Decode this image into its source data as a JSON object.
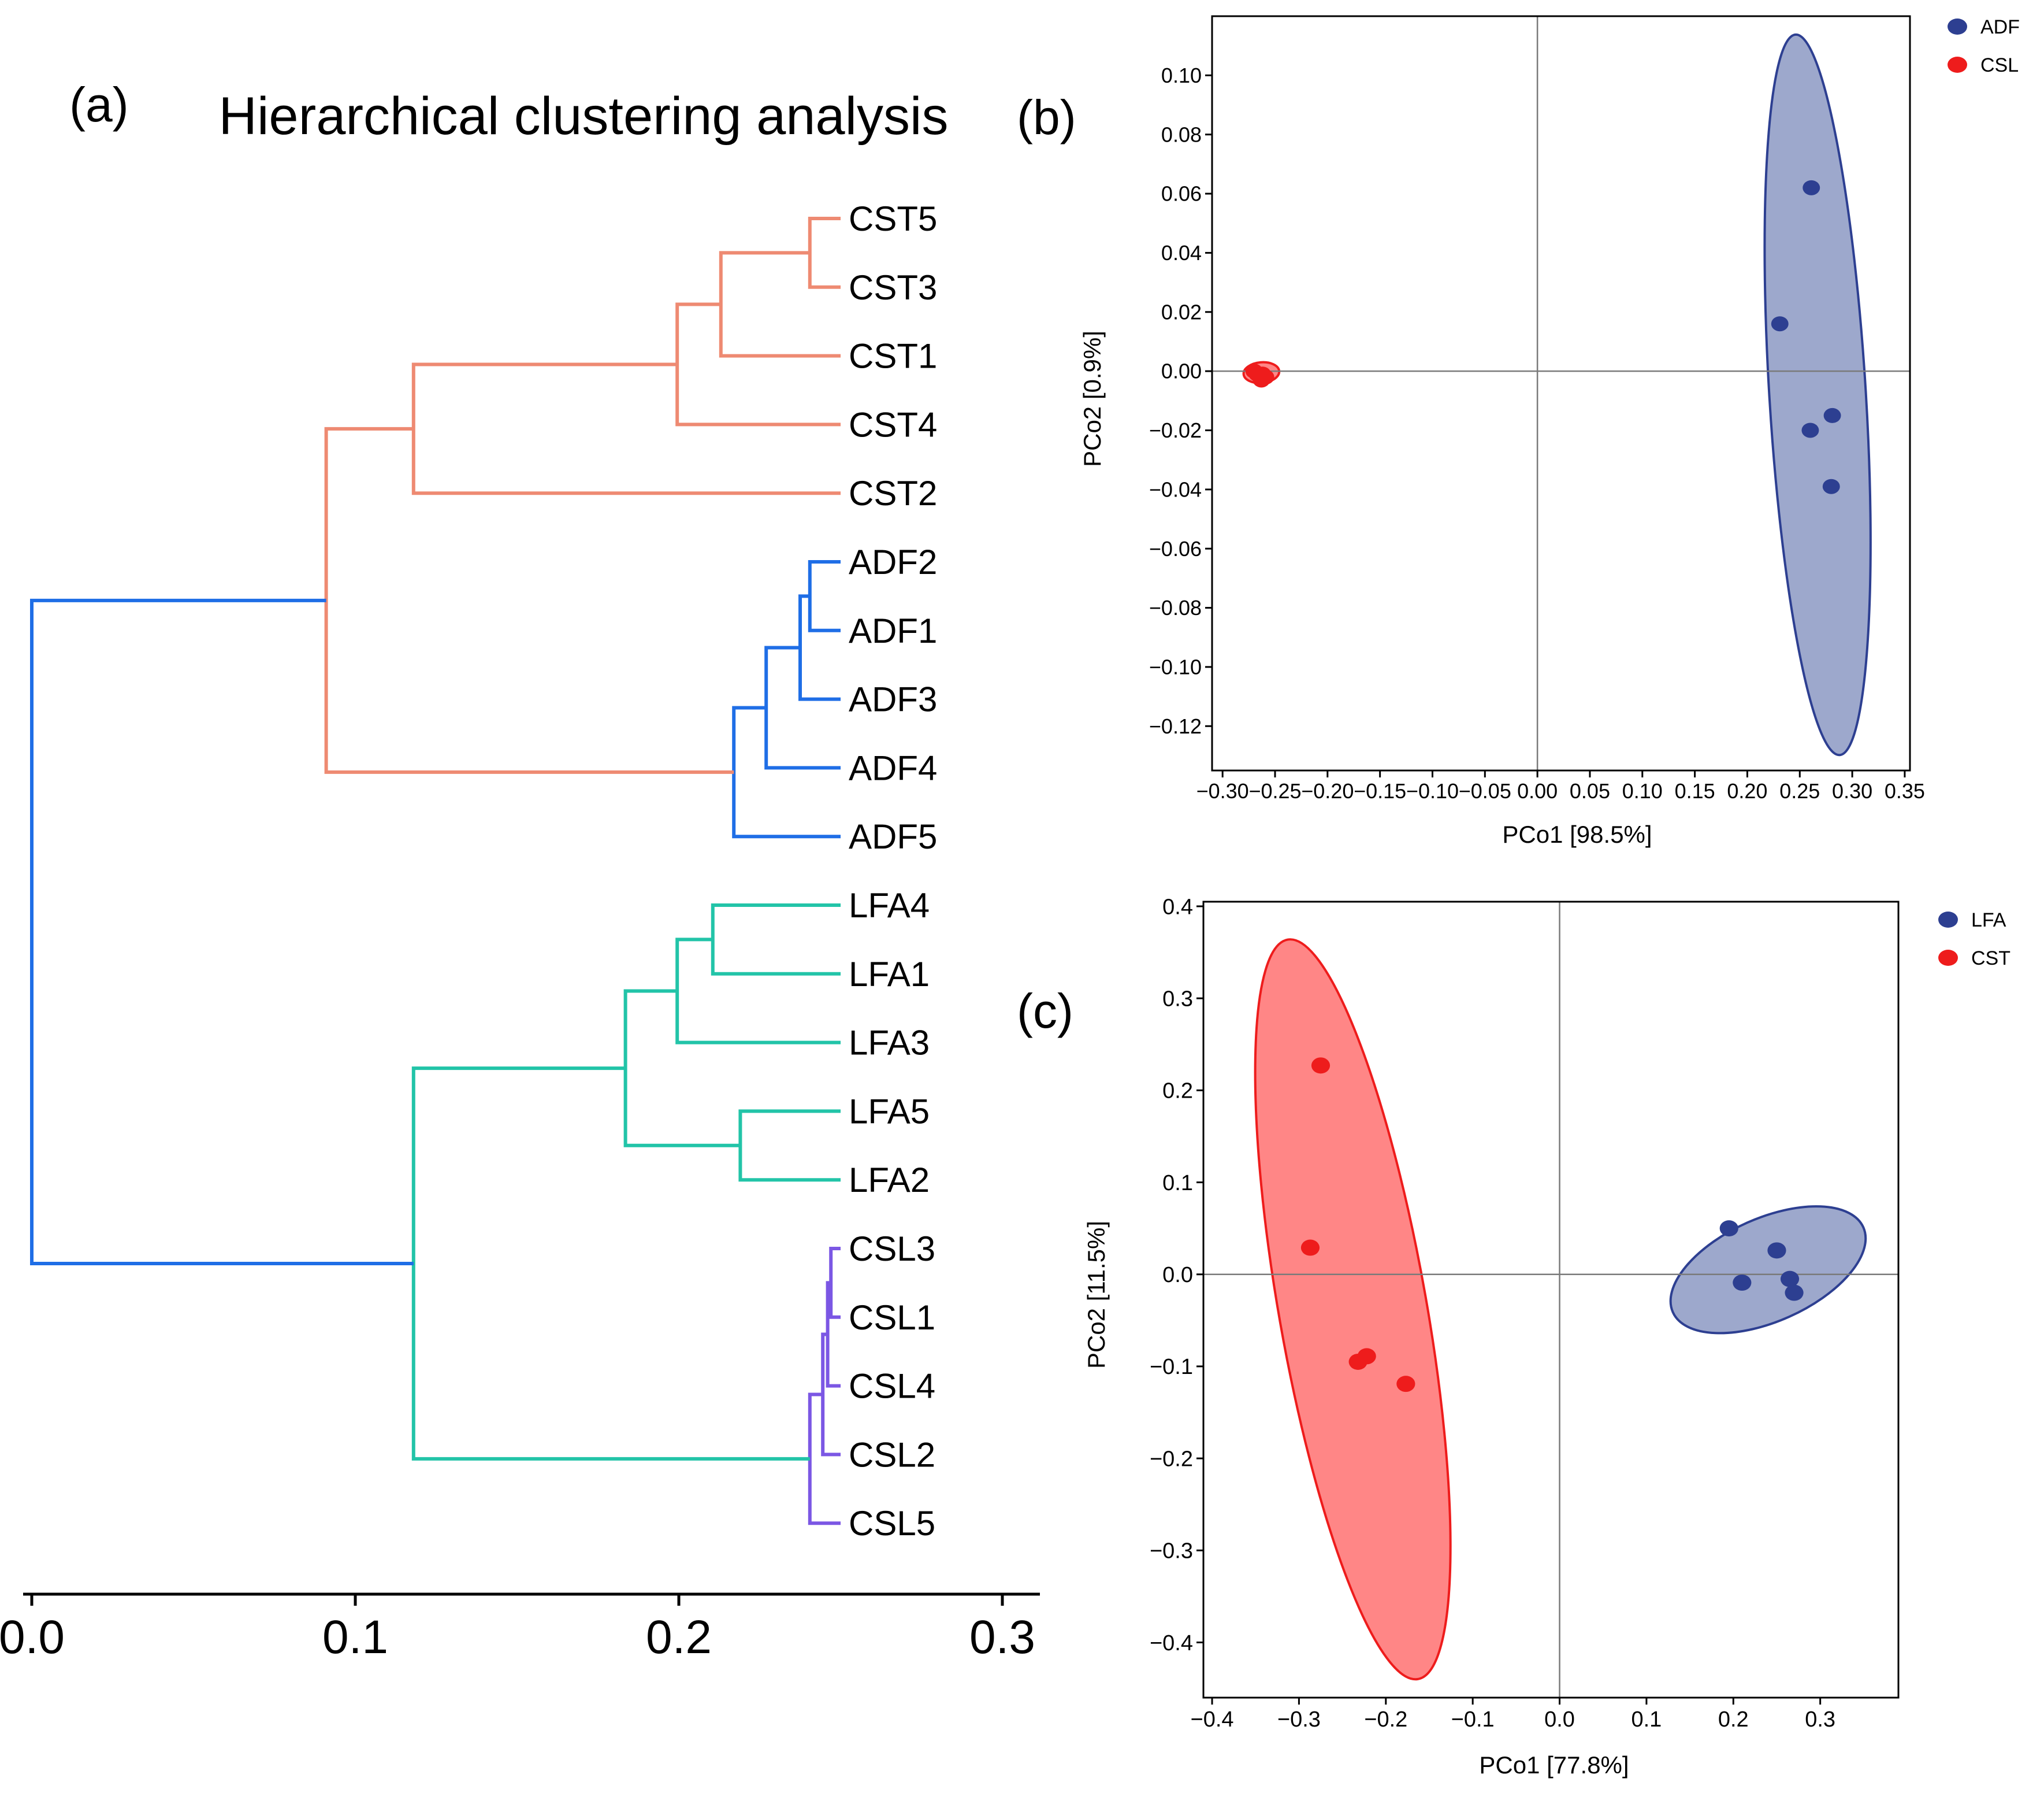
{
  "panels": {
    "a": "(a)",
    "b": "(b)",
    "c": "(c)"
  },
  "chart_data": [
    {
      "type": "dendrogram",
      "title": "Hierarchical clustering analysis",
      "xlim": [
        0,
        0.31
      ],
      "xticks": [
        "0.0",
        "0.1",
        "0.2",
        "0.3"
      ],
      "leaves": [
        "CST5",
        "CST3",
        "CST1",
        "CST4",
        "CST2",
        "ADF2",
        "ADF1",
        "ADF3",
        "ADF4",
        "ADF5",
        "LFA4",
        "LFA1",
        "LFA3",
        "LFA5",
        "LFA2",
        "CSL3",
        "CSL1",
        "CSL4",
        "CSL2",
        "CSL5"
      ],
      "leaf_height": 0.25,
      "merges": [
        {
          "id": "m1",
          "a": "CST5",
          "b": "CST3",
          "height": 0.2405,
          "color": "#ee8a72"
        },
        {
          "id": "m2",
          "a": "m1",
          "b": "CST1",
          "height": 0.213,
          "color": "#ee8a72"
        },
        {
          "id": "m3",
          "a": "m2",
          "b": "CST4",
          "height": 0.1995,
          "color": "#ee8a72"
        },
        {
          "id": "m4",
          "a": "m3",
          "b": "CST2",
          "height": 0.118,
          "color": "#ee8a72"
        },
        {
          "id": "m5",
          "a": "ADF2",
          "b": "ADF1",
          "height": 0.2405,
          "color": "#1f6ee6"
        },
        {
          "id": "m6",
          "a": "m5",
          "b": "ADF3",
          "height": 0.2375,
          "color": "#1f6ee6"
        },
        {
          "id": "m7",
          "a": "m6",
          "b": "ADF4",
          "height": 0.227,
          "color": "#1f6ee6"
        },
        {
          "id": "m8",
          "a": "m7",
          "b": "ADF5",
          "height": 0.217,
          "color": "#1f6ee6"
        },
        {
          "id": "m9",
          "a": "m4",
          "b": "m8",
          "height": 0.091,
          "color": "#ee8a72"
        },
        {
          "id": "m10",
          "a": "LFA4",
          "b": "LFA1",
          "height": 0.2105,
          "color": "#22c4a8"
        },
        {
          "id": "m11",
          "a": "m10",
          "b": "LFA3",
          "height": 0.1995,
          "color": "#22c4a8"
        },
        {
          "id": "m12",
          "a": "LFA5",
          "b": "LFA2",
          "height": 0.219,
          "color": "#22c4a8"
        },
        {
          "id": "m13",
          "a": "m11",
          "b": "m12",
          "height": 0.1835,
          "color": "#22c4a8"
        },
        {
          "id": "m14",
          "a": "CSL3",
          "b": "CSL1",
          "height": 0.247,
          "color": "#7b57e4"
        },
        {
          "id": "m15",
          "a": "m14",
          "b": "CSL4",
          "height": 0.246,
          "color": "#7b57e4"
        },
        {
          "id": "m16",
          "a": "m15",
          "b": "CSL2",
          "height": 0.2445,
          "color": "#7b57e4"
        },
        {
          "id": "m17",
          "a": "m16",
          "b": "CSL5",
          "height": 0.2405,
          "color": "#7b57e4"
        },
        {
          "id": "m18",
          "a": "m13",
          "b": "m17",
          "height": 0.118,
          "color": "#22c4a8"
        },
        {
          "id": "m19",
          "a": "m9",
          "b": "m18",
          "height": 0.0,
          "color": "#1f6ee6"
        }
      ]
    },
    {
      "type": "scatter",
      "xlabel": "PCo1 [98.5%]",
      "ylabel": "PCo2 [0.9%]",
      "xlim": [
        -0.31,
        0.355
      ],
      "ylim": [
        -0.135,
        0.12
      ],
      "xticks": [
        "−0.30",
        "−0.25",
        "−0.20",
        "−0.15",
        "−0.10",
        "−0.05",
        "0.00",
        "0.05",
        "0.10",
        "0.15",
        "0.20",
        "0.25",
        "0.30",
        "0.35"
      ],
      "yticks": [
        "0.10",
        "0.08",
        "0.06",
        "0.04",
        "0.02",
        "0.00",
        "−0.02",
        "−0.04",
        "−0.06",
        "−0.08",
        "−0.10",
        "−0.12"
      ],
      "legend": "top-right",
      "series": [
        {
          "name": "ADF",
          "color": "#2d3f91",
          "fill": "#98a3c9",
          "points": [
            [
              0.261,
              0.062
            ],
            [
              0.231,
              0.016
            ],
            [
              0.281,
              -0.015
            ],
            [
              0.26,
              -0.02
            ],
            [
              0.28,
              -0.039
            ]
          ],
          "ellipse": {
            "cx": 0.267,
            "cy": -0.008,
            "rx": 0.046,
            "ry": 0.122,
            "angle": -3.5
          }
        },
        {
          "name": "CSL",
          "color": "#ee1c1c",
          "fill": "#ff8080",
          "points": [
            [
              -0.27,
              0.0
            ],
            [
              -0.267,
              -0.001
            ],
            [
              -0.264,
              -0.002
            ],
            [
              -0.262,
              -0.001
            ],
            [
              -0.259,
              -0.002
            ],
            [
              -0.263,
              -0.003
            ]
          ],
          "ellipse": {
            "cx": -0.263,
            "cy": -0.0005,
            "rx": 0.017,
            "ry": 0.0035,
            "angle": -5
          }
        }
      ]
    },
    {
      "type": "scatter",
      "xlabel": "PCo1 [77.8%]",
      "ylabel": "PCo2 [11.5%]",
      "xlim": [
        -0.41,
        0.39
      ],
      "ylim": [
        -0.46,
        0.405
      ],
      "xticks": [
        "−0.4",
        "−0.3",
        "−0.2",
        "−0.1",
        "0.0",
        "0.1",
        "0.2",
        "0.3"
      ],
      "yticks": [
        "0.4",
        "0.3",
        "0.2",
        "0.1",
        "0.0",
        "−0.1",
        "−0.2",
        "−0.3",
        "−0.4"
      ],
      "legend": "top-right",
      "series": [
        {
          "name": "LFA",
          "color": "#2d3f91",
          "fill": "#98a3c9",
          "points": [
            [
              0.195,
              0.05
            ],
            [
              0.25,
              0.026
            ],
            [
              0.265,
              -0.005
            ],
            [
              0.21,
              -0.009
            ],
            [
              0.27,
              -0.02
            ]
          ],
          "ellipse": {
            "cx": 0.24,
            "cy": 0.005,
            "rx": 0.12,
            "ry": 0.056,
            "angle": -24
          }
        },
        {
          "name": "CST",
          "color": "#ee1c1c",
          "fill": "#ff8080",
          "points": [
            [
              -0.275,
              0.227
            ],
            [
              -0.287,
              0.029
            ],
            [
              -0.222,
              -0.089
            ],
            [
              -0.232,
              -0.095
            ],
            [
              -0.177,
              -0.119
            ]
          ],
          "ellipse": {
            "cx": -0.238,
            "cy": -0.038,
            "rx": 0.085,
            "ry": 0.408,
            "angle": -10
          }
        }
      ]
    }
  ]
}
